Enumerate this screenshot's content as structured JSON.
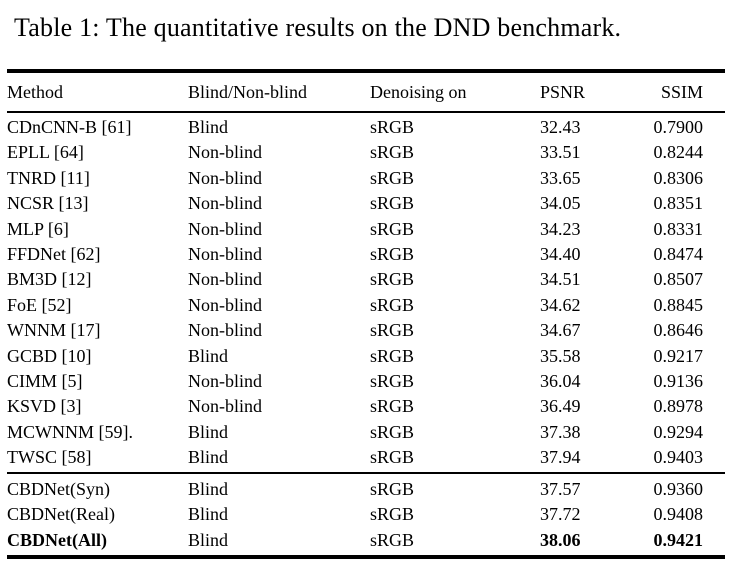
{
  "caption": "Table 1: The quantitative results on the DND benchmark.",
  "table": {
    "columns": [
      "Method",
      "Blind/Non-blind",
      "Denoising on",
      "PSNR",
      "SSIM"
    ],
    "sections": [
      {
        "name": "existing-methods",
        "rows": [
          {
            "cells": [
              "CDnCNN-B [61]",
              "Blind",
              "sRGB",
              "32.43",
              "0.7900"
            ]
          },
          {
            "cells": [
              "EPLL [64]",
              "Non-blind",
              "sRGB",
              "33.51",
              "0.8244"
            ]
          },
          {
            "cells": [
              "TNRD [11]",
              "Non-blind",
              "sRGB",
              "33.65",
              "0.8306"
            ]
          },
          {
            "cells": [
              "NCSR [13]",
              "Non-blind",
              "sRGB",
              "34.05",
              "0.8351"
            ]
          },
          {
            "cells": [
              "MLP [6]",
              "Non-blind",
              "sRGB",
              "34.23",
              "0.8331"
            ]
          },
          {
            "cells": [
              "FFDNet [62]",
              "Non-blind",
              "sRGB",
              "34.40",
              "0.8474"
            ]
          },
          {
            "cells": [
              "BM3D [12]",
              "Non-blind",
              "sRGB",
              "34.51",
              "0.8507"
            ]
          },
          {
            "cells": [
              "FoE [52]",
              "Non-blind",
              "sRGB",
              "34.62",
              "0.8845"
            ]
          },
          {
            "cells": [
              "WNNM [17]",
              "Non-blind",
              "sRGB",
              "34.67",
              "0.8646"
            ]
          },
          {
            "cells": [
              "GCBD [10]",
              "Blind",
              "sRGB",
              "35.58",
              "0.9217"
            ]
          },
          {
            "cells": [
              "CIMM [5]",
              "Non-blind",
              "sRGB",
              "36.04",
              "0.9136"
            ]
          },
          {
            "cells": [
              "KSVD [3]",
              "Non-blind",
              "sRGB",
              "36.49",
              "0.8978"
            ]
          },
          {
            "cells": [
              "MCWNNM [59].",
              "Blind",
              "sRGB",
              "37.38",
              "0.9294"
            ]
          },
          {
            "cells": [
              "TWSC [58]",
              "Blind",
              "sRGB",
              "37.94",
              "0.9403"
            ]
          }
        ]
      },
      {
        "name": "cbdnet-variants",
        "rows": [
          {
            "cells": [
              "CBDNet(Syn)",
              "Blind",
              "sRGB",
              "37.57",
              "0.9360"
            ]
          },
          {
            "cells": [
              "CBDNet(Real)",
              "Blind",
              "sRGB",
              "37.72",
              "0.9408"
            ]
          },
          {
            "cells": [
              "CBDNet(All)",
              "Blind",
              "sRGB",
              "38.06",
              "0.9421"
            ],
            "bold_cells": [
              0,
              3,
              4
            ]
          }
        ]
      }
    ]
  }
}
